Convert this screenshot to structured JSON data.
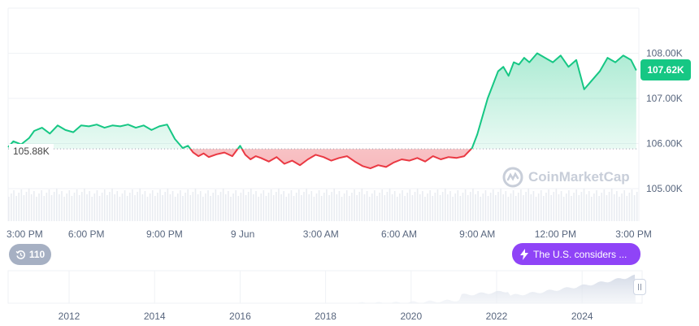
{
  "chart_data": {
    "type": "line",
    "baseline": 105.88,
    "baseline_label": "105.88K",
    "current_label": "107.62K",
    "y_ticks": [
      {
        "value": 108.0,
        "label": "108.00K"
      },
      {
        "value": 107.0,
        "label": "107.00K"
      },
      {
        "value": 106.0,
        "label": "106.00K"
      },
      {
        "value": 105.0,
        "label": "105.00K"
      }
    ],
    "ylim": [
      104.28,
      109.0
    ],
    "x_ticks": [
      "3:00 PM",
      "6:00 PM",
      "9:00 PM",
      "9 Jun",
      "3:00 AM",
      "6:00 AM",
      "9:00 AM",
      "12:00 PM",
      "3:00 PM"
    ],
    "x_tick_hours": [
      0,
      3,
      6,
      9,
      12,
      15,
      18,
      21,
      24
    ],
    "x_range_hours": [
      0,
      24.2
    ],
    "series": [
      {
        "x": [
          0,
          0.2,
          0.5,
          0.8,
          1.0,
          1.3,
          1.6,
          1.9,
          2.2,
          2.5,
          2.8,
          3.1,
          3.4,
          3.7,
          4.0,
          4.3,
          4.6,
          4.9,
          5.2,
          5.5,
          5.8,
          6.1,
          6.4,
          6.7,
          6.9,
          7.1,
          7.3,
          7.5,
          7.7,
          8.0,
          8.3,
          8.6,
          8.9,
          9.1,
          9.3,
          9.5,
          9.7,
          10.0,
          10.3,
          10.6,
          10.9,
          11.2,
          11.5,
          11.8,
          12.1,
          12.4,
          12.7,
          13.0,
          13.3,
          13.6,
          13.9,
          14.2,
          14.5,
          14.8,
          15.1,
          15.4,
          15.7,
          16.0,
          16.3,
          16.6,
          16.9,
          17.2,
          17.5,
          17.8,
          18.0,
          18.2,
          18.4,
          18.6,
          18.8,
          19.0,
          19.2,
          19.4,
          19.6,
          19.8,
          20.0,
          20.3,
          20.6,
          20.9,
          21.2,
          21.5,
          21.8,
          22.1,
          22.4,
          22.7,
          23.0,
          23.3,
          23.6,
          23.9,
          24.1
        ],
        "values": [
          105.92,
          106.05,
          105.98,
          106.12,
          106.28,
          106.35,
          106.22,
          106.4,
          106.3,
          106.25,
          106.4,
          106.38,
          106.42,
          106.35,
          106.4,
          106.38,
          106.42,
          106.35,
          106.4,
          106.3,
          106.38,
          106.42,
          106.1,
          105.9,
          105.95,
          105.8,
          105.72,
          105.78,
          105.7,
          105.76,
          105.8,
          105.72,
          105.95,
          105.75,
          105.65,
          105.72,
          105.68,
          105.6,
          105.7,
          105.55,
          105.62,
          105.52,
          105.65,
          105.75,
          105.7,
          105.62,
          105.68,
          105.72,
          105.6,
          105.5,
          105.45,
          105.52,
          105.48,
          105.58,
          105.65,
          105.62,
          105.68,
          105.6,
          105.72,
          105.65,
          105.7,
          105.68,
          105.72,
          105.9,
          106.2,
          106.6,
          107.0,
          107.3,
          107.6,
          107.7,
          107.5,
          107.8,
          107.75,
          107.9,
          107.8,
          108.0,
          107.9,
          107.8,
          107.95,
          107.7,
          107.85,
          107.2,
          107.4,
          107.6,
          107.9,
          107.8,
          107.95,
          107.85,
          107.62
        ]
      }
    ],
    "mini_x_ticks": [
      "2012",
      "2014",
      "2016",
      "2018",
      "2020",
      "2022",
      "2024"
    ],
    "grid": true,
    "watermark": "CoinMarketCap"
  },
  "ui": {
    "history_count": "110",
    "news_text": "The U.S. considers ..."
  }
}
